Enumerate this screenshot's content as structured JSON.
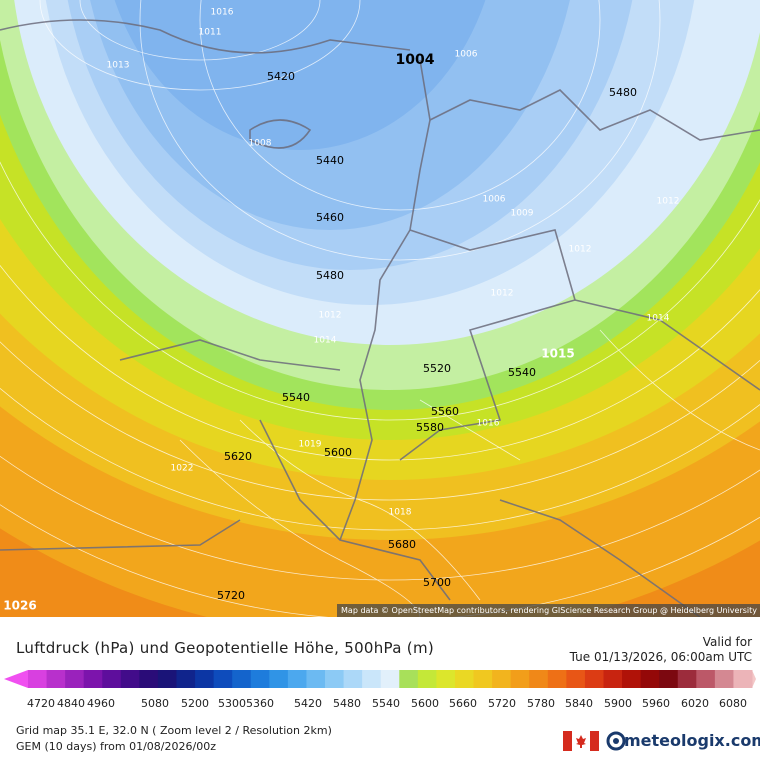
{
  "map": {
    "geopotential_labels": [
      "5420",
      "1004",
      "5480",
      "5440",
      "5460",
      "5480",
      "5520",
      "5540",
      "5540",
      "5560",
      "5580",
      "5600",
      "5620",
      "5680",
      "5700",
      "5720"
    ],
    "pressure_labels": [
      "1016",
      "1011",
      "1013",
      "1006",
      "1008",
      "1006",
      "1009",
      "1012",
      "1012",
      "1012",
      "1012",
      "1014",
      "1014",
      "1015",
      "1019",
      "1016",
      "1022",
      "1018",
      "1026"
    ],
    "attribution": "Map data © OpenStreetMap contributors, rendering GIScience Research Group @ Heidelberg University"
  },
  "header": {
    "title": "Luftdruck (hPa) und Geopotentielle Höhe, 500hPa (m)",
    "valid_label": "Valid for",
    "valid_time": "Tue 01/13/2026, 06:00am UTC"
  },
  "legend": {
    "ticks": [
      4720,
      4840,
      4960,
      5080,
      5200,
      5300,
      5360,
      5420,
      5480,
      5540,
      5600,
      5660,
      5720,
      5780,
      5840,
      5900,
      5960,
      6020,
      6080
    ],
    "colors": [
      "#d840e0",
      "#b830cc",
      "#9a22bc",
      "#7c14ac",
      "#5e0e9c",
      "#420c8a",
      "#2a0c78",
      "#1a1478",
      "#10248c",
      "#0c36a4",
      "#0e4cbc",
      "#1464cc",
      "#1e7cdc",
      "#3094e6",
      "#4ca8ee",
      "#6cbaf2",
      "#8ccaf5",
      "#acd8f8",
      "#cae6fa",
      "#e2f0fb",
      "#a8e05a",
      "#c4e838",
      "#dce62c",
      "#ead824",
      "#f0c820",
      "#f2b41e",
      "#f29e1a",
      "#f08818",
      "#ee7016",
      "#e85616",
      "#dc3c14",
      "#c82410",
      "#b01208",
      "#940808",
      "#7c0810",
      "#9c2c3c",
      "#bc5868",
      "#d48892",
      "#ecb4b8"
    ],
    "end_colors": [
      "#f050f0",
      "#f4c8c8"
    ]
  },
  "footer": {
    "grid_info": "Grid map 35.1 E, 32.0 N ( Zoom level 2 / Resolution 2km)",
    "model_info": "GEM (10 days) from  01/08/2026/00z",
    "brand": "meteologix.com"
  }
}
